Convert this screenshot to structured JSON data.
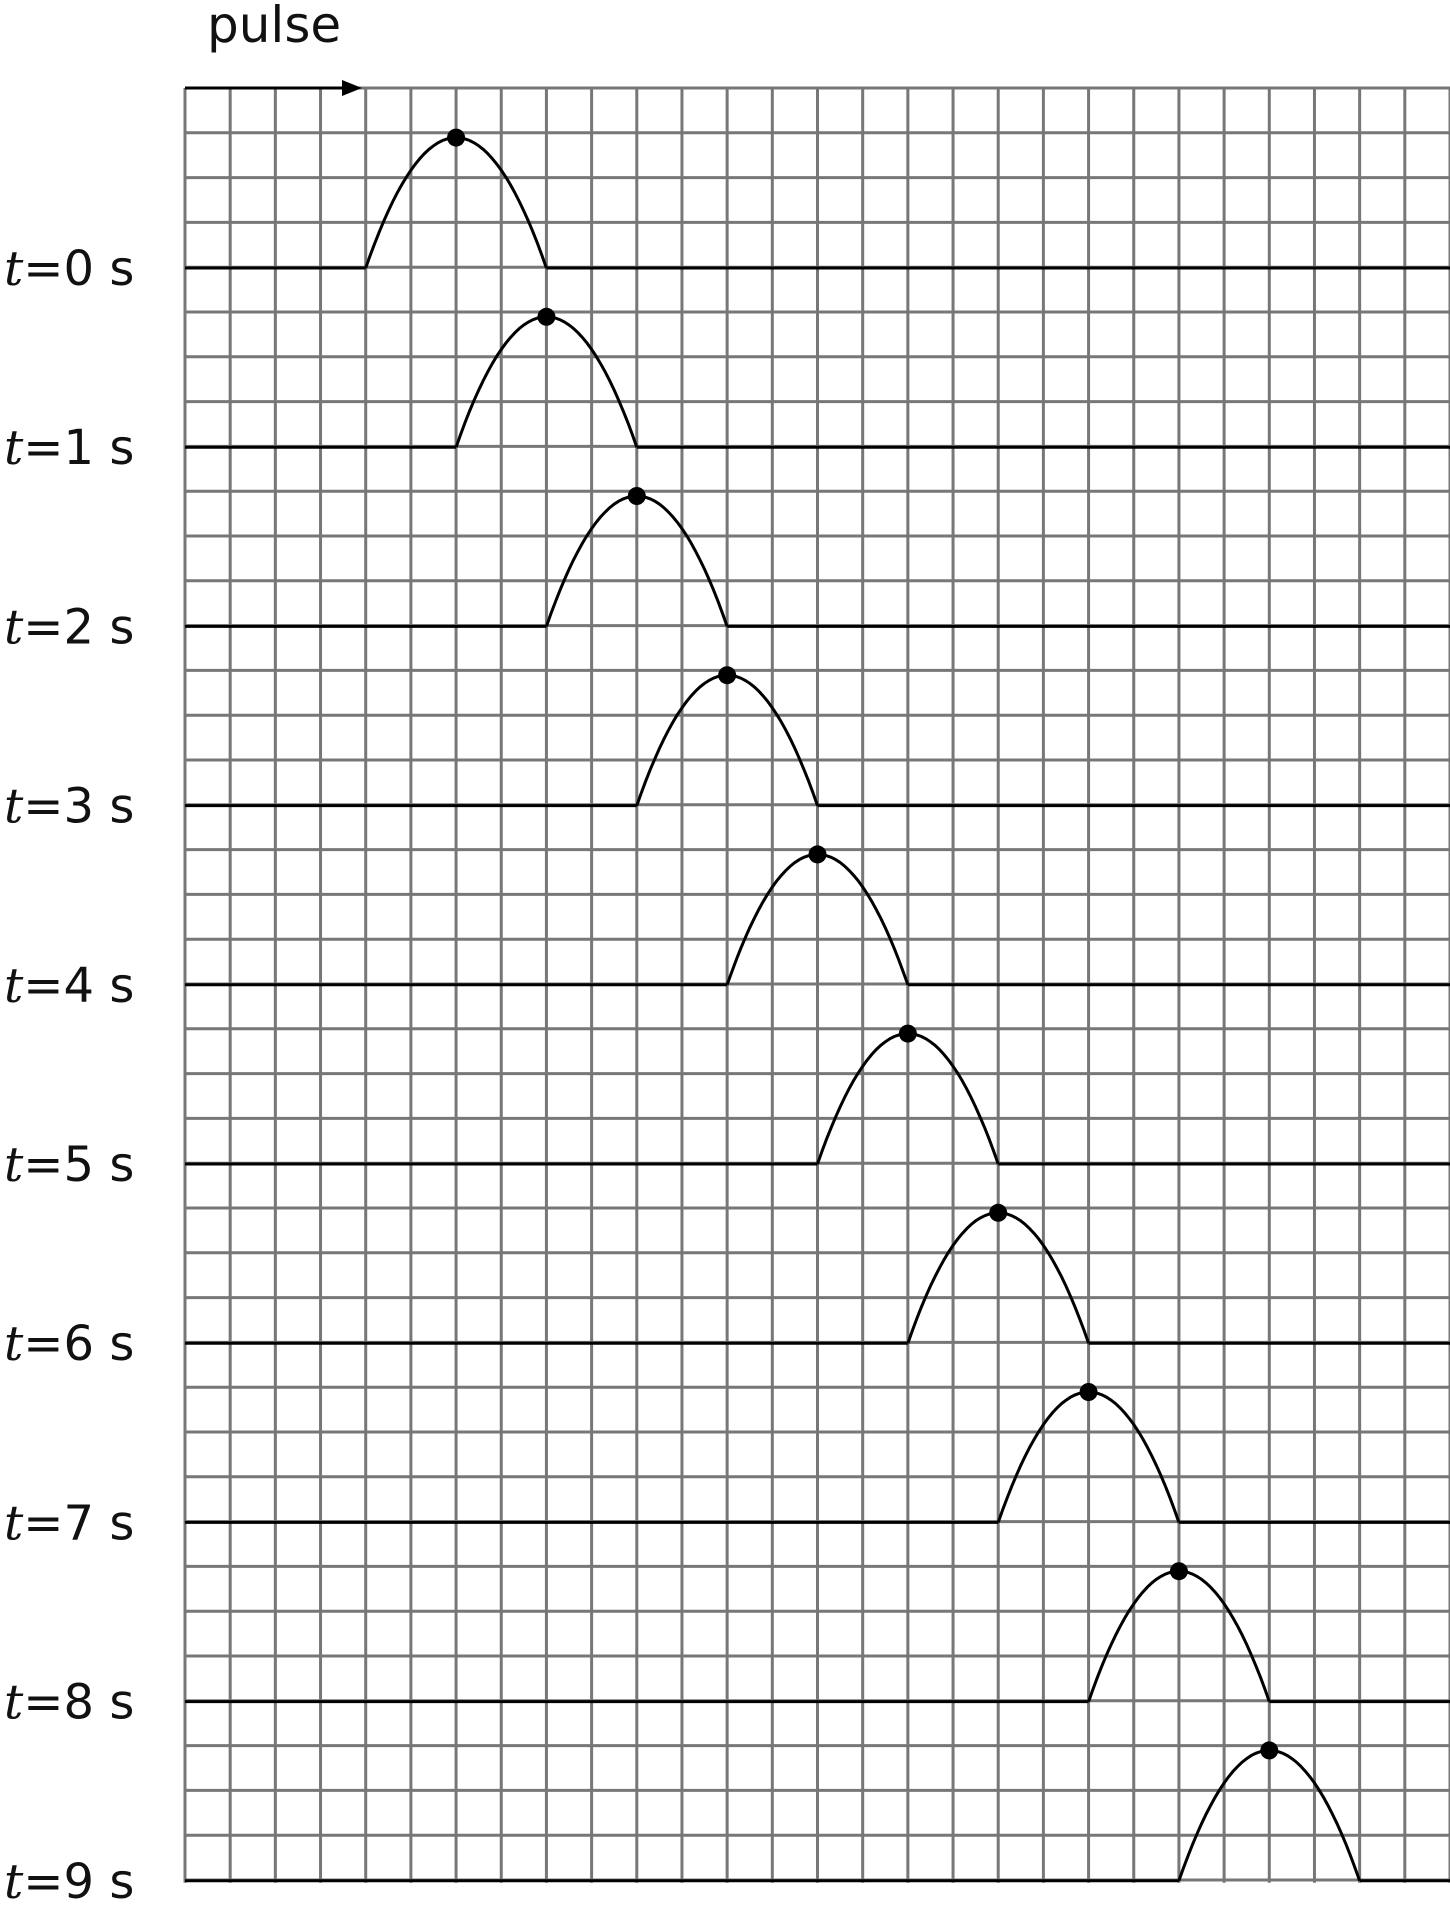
{
  "header": {
    "title": "pulse"
  },
  "rows": [
    {
      "label_var": "t",
      "label_rest": "=0 s",
      "peak_col": 6
    },
    {
      "label_var": "t",
      "label_rest": "=1 s",
      "peak_col": 8
    },
    {
      "label_var": "t",
      "label_rest": "=2 s",
      "peak_col": 10
    },
    {
      "label_var": "t",
      "label_rest": "=3 s",
      "peak_col": 12
    },
    {
      "label_var": "t",
      "label_rest": "=4 s",
      "peak_col": 14
    },
    {
      "label_var": "t",
      "label_rest": "=5 s",
      "peak_col": 16
    },
    {
      "label_var": "t",
      "label_rest": "=6 s",
      "peak_col": 18
    },
    {
      "label_var": "t",
      "label_rest": "=7 s",
      "peak_col": 20
    },
    {
      "label_var": "t",
      "label_rest": "=8 s",
      "peak_col": 22
    },
    {
      "label_var": "t",
      "label_rest": "=9 s",
      "peak_col": 24
    }
  ],
  "grid": {
    "columns": 28,
    "rows_per_step": 4,
    "steps": 10
  },
  "pulse": {
    "half_width_cells": 2,
    "height_cells": 3,
    "shift_cells_per_step": 2
  },
  "colors": {
    "grid": "#777777",
    "ink": "#000000"
  }
}
